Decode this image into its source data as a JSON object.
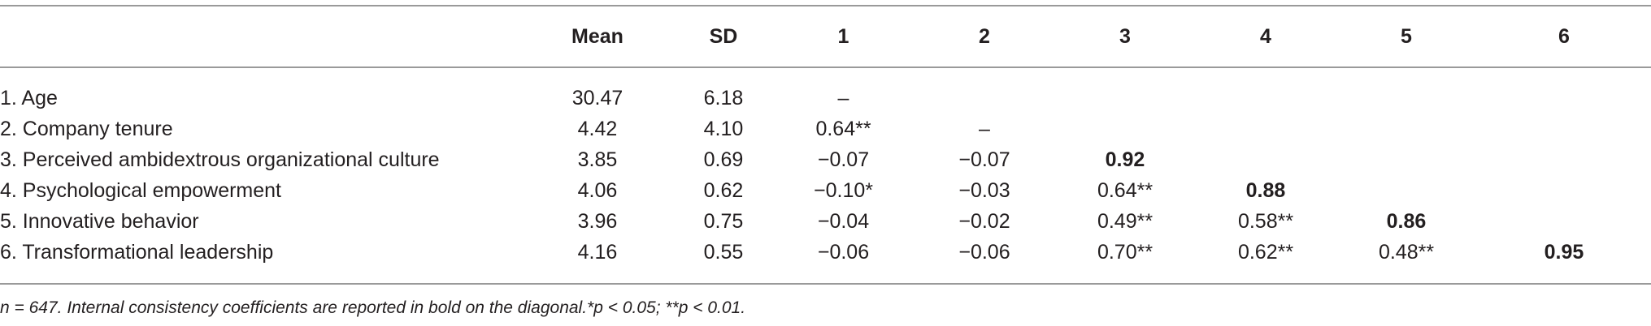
{
  "table": {
    "headers": [
      "",
      "Mean",
      "SD",
      "1",
      "2",
      "3",
      "4",
      "5",
      "6"
    ],
    "rows": [
      {
        "label": "1. Age",
        "mean": "30.47",
        "sd": "6.18",
        "c1": "–",
        "c2": "",
        "c3": "",
        "c4": "",
        "c5": "",
        "c6": ""
      },
      {
        "label": "2. Company tenure",
        "mean": "4.42",
        "sd": "4.10",
        "c1": "0.64**",
        "c2": "–",
        "c3": "",
        "c4": "",
        "c5": "",
        "c6": ""
      },
      {
        "label": "3. Perceived ambidextrous organizational culture",
        "mean": "3.85",
        "sd": "0.69",
        "c1": "−0.07",
        "c2": "−0.07",
        "c3": "0.92",
        "c4": "",
        "c5": "",
        "c6": ""
      },
      {
        "label": "4. Psychological empowerment",
        "mean": "4.06",
        "sd": "0.62",
        "c1": "−0.10*",
        "c2": "−0.03",
        "c3": "0.64**",
        "c4": "0.88",
        "c5": "",
        "c6": ""
      },
      {
        "label": "5. Innovative behavior",
        "mean": "3.96",
        "sd": "0.75",
        "c1": "−0.04",
        "c2": "−0.02",
        "c3": "0.49**",
        "c4": "0.58**",
        "c5": "0.86",
        "c6": ""
      },
      {
        "label": "6. Transformational leadership",
        "mean": "4.16",
        "sd": "0.55",
        "c1": "−0.06",
        "c2": "−0.06",
        "c3": "0.70**",
        "c4": "0.62**",
        "c5": "0.48**",
        "c6": "0.95"
      }
    ]
  },
  "note": "n = 647. Internal consistency coefficients are reported in bold on the diagonal.*p < 0.05; **p < 0.01."
}
